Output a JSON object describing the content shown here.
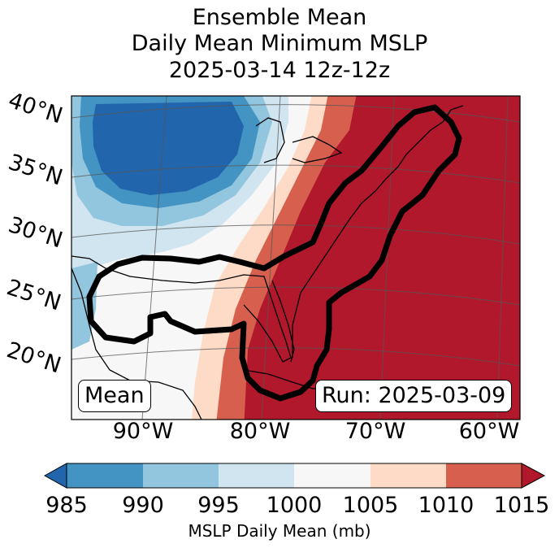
{
  "title": {
    "line1": "Ensemble Mean",
    "line2": "Daily Mean Minimum MSLP",
    "line3": "2025-03-14 12z-12z"
  },
  "map": {
    "lat_labels": [
      "40°N",
      "35°N",
      "30°N",
      "25°N",
      "20°N"
    ],
    "lon_labels": [
      "90°W",
      "80°W",
      "70°W",
      "60°W"
    ],
    "mean_label": "Mean",
    "run_label": "Run: 2025-03-09",
    "colors": {
      "985-990": "#2166ac",
      "990-995": "#4393c3",
      "995-1000": "#92c5de",
      "1000-1005": "#d1e5f0",
      "1005-1010": "#f7f7f7",
      "1010-1015": "#fddbc7",
      "1015+": "#b2182b",
      "1010-1015b": "#d6604d"
    }
  },
  "colorbar": {
    "ticks": [
      "985",
      "990",
      "995",
      "1000",
      "1005",
      "1010",
      "1015"
    ],
    "bins": [
      {
        "range": "<985",
        "color": "#2166ac"
      },
      {
        "range": "985-990",
        "color": "#4393c3"
      },
      {
        "range": "990-995",
        "color": "#92c5de"
      },
      {
        "range": "995-1000",
        "color": "#d1e5f0"
      },
      {
        "range": "1000-1005",
        "color": "#f7f7f7"
      },
      {
        "range": "1005-1010",
        "color": "#fddbc7"
      },
      {
        "range": "1010-1015",
        "color": "#d6604d"
      },
      {
        "range": ">1015",
        "color": "#b2182b"
      }
    ],
    "label": "MSLP Daily Mean (mb)"
  }
}
